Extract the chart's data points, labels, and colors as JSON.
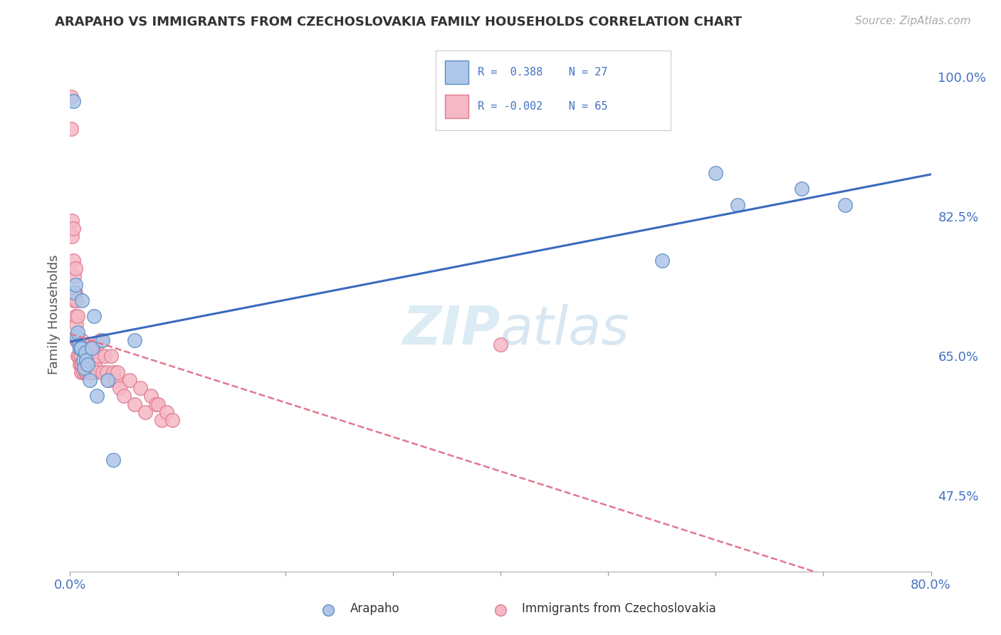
{
  "title": "ARAPAHO VS IMMIGRANTS FROM CZECHOSLOVAKIA FAMILY HOUSEHOLDS CORRELATION CHART",
  "source": "Source: ZipAtlas.com",
  "ylabel": "Family Households",
  "xlim": [
    0.0,
    0.8
  ],
  "ylim": [
    0.38,
    1.025
  ],
  "yticks_right": [
    0.475,
    0.65,
    0.825,
    1.0
  ],
  "yticklabels_right": [
    "47.5%",
    "65.0%",
    "82.5%",
    "100.0%"
  ],
  "arapaho_color": "#aec6e8",
  "czech_color": "#f5b8c4",
  "arapaho_edge_color": "#5b8ec4",
  "czech_edge_color": "#e07890",
  "arapaho_line_color": "#3a6abf",
  "czech_line_color": "#e07890",
  "background_color": "#ffffff",
  "grid_color": "#d0d0d0",
  "arapaho_x": [
    0.003,
    0.004,
    0.005,
    0.006,
    0.007,
    0.008,
    0.009,
    0.01,
    0.011,
    0.012,
    0.013,
    0.014,
    0.015,
    0.016,
    0.018,
    0.02,
    0.022,
    0.025,
    0.03,
    0.035,
    0.04,
    0.06,
    0.55,
    0.6,
    0.62,
    0.68,
    0.72
  ],
  "arapaho_y": [
    0.97,
    0.73,
    0.74,
    0.675,
    0.68,
    0.665,
    0.66,
    0.66,
    0.72,
    0.645,
    0.635,
    0.655,
    0.645,
    0.64,
    0.62,
    0.66,
    0.7,
    0.6,
    0.67,
    0.62,
    0.52,
    0.67,
    0.77,
    0.88,
    0.84,
    0.86,
    0.84
  ],
  "czech_x": [
    0.001,
    0.001,
    0.002,
    0.002,
    0.003,
    0.003,
    0.003,
    0.004,
    0.004,
    0.005,
    0.005,
    0.005,
    0.006,
    0.006,
    0.006,
    0.007,
    0.007,
    0.007,
    0.008,
    0.008,
    0.009,
    0.009,
    0.01,
    0.01,
    0.01,
    0.011,
    0.011,
    0.012,
    0.013,
    0.014,
    0.015,
    0.015,
    0.016,
    0.017,
    0.018,
    0.019,
    0.02,
    0.021,
    0.022,
    0.023,
    0.024,
    0.025,
    0.026,
    0.028,
    0.03,
    0.032,
    0.034,
    0.036,
    0.038,
    0.04,
    0.042,
    0.044,
    0.046,
    0.05,
    0.055,
    0.06,
    0.065,
    0.07,
    0.075,
    0.08,
    0.082,
    0.085,
    0.09,
    0.095,
    0.4
  ],
  "czech_y": [
    0.975,
    0.935,
    0.82,
    0.8,
    0.81,
    0.77,
    0.73,
    0.75,
    0.72,
    0.76,
    0.73,
    0.7,
    0.72,
    0.69,
    0.67,
    0.7,
    0.67,
    0.65,
    0.67,
    0.65,
    0.66,
    0.64,
    0.65,
    0.64,
    0.63,
    0.67,
    0.64,
    0.63,
    0.64,
    0.63,
    0.65,
    0.63,
    0.64,
    0.63,
    0.66,
    0.63,
    0.64,
    0.63,
    0.65,
    0.64,
    0.63,
    0.665,
    0.65,
    0.67,
    0.63,
    0.65,
    0.63,
    0.62,
    0.65,
    0.63,
    0.62,
    0.63,
    0.61,
    0.6,
    0.62,
    0.59,
    0.61,
    0.58,
    0.6,
    0.59,
    0.59,
    0.57,
    0.58,
    0.57,
    0.665
  ]
}
